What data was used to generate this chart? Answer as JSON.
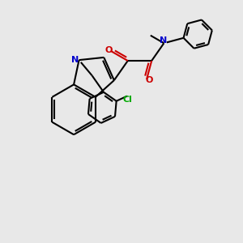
{
  "bg_color": "#e8e8e8",
  "line_color": "#000000",
  "N_color": "#0000cc",
  "O_color": "#cc0000",
  "Cl_color": "#00aa00",
  "lw": 1.5,
  "fig_size": [
    3.0,
    3.0
  ],
  "dpi": 100,
  "xlim": [
    0,
    10
  ],
  "ylim": [
    0,
    10
  ]
}
